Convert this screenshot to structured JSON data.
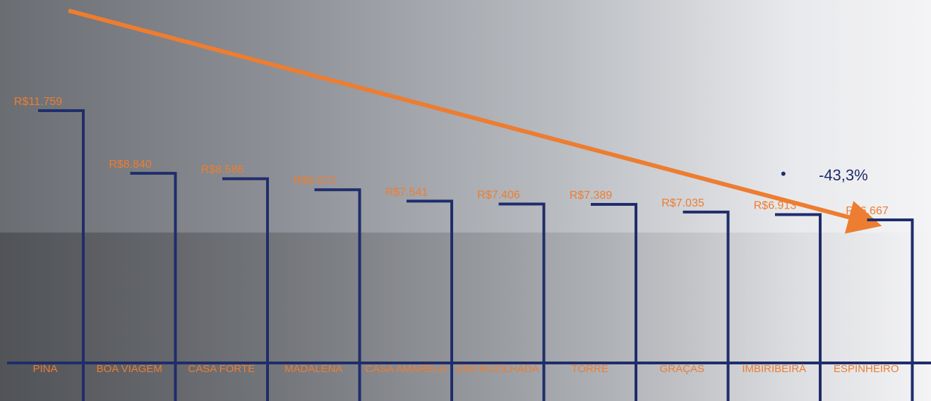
{
  "chart_data": {
    "type": "bar",
    "categories": [
      "PINA",
      "BOA VIAGEM",
      "CASA FORTE",
      "MADALENA",
      "CASA AMARELA",
      "ENCRUZILHADA",
      "TORRE",
      "GRAÇAS",
      "IMBIRIBEIRA",
      "ESPINHEIRO"
    ],
    "values": [
      11759,
      8840,
      8586,
      8072,
      7541,
      7406,
      7389,
      7035,
      6913,
      6667
    ],
    "value_labels": [
      "R$11.759",
      "R$8.840",
      "R$8.586",
      "R$8.072",
      "R$7.541",
      "R$7.406",
      "R$7.389",
      "R$7.035",
      "R$6.913",
      "R$6.667"
    ],
    "color": "#1f2d6b",
    "label_color": "#ed7d31",
    "arrow_color": "#ed7d31",
    "annotation": "-43,3%"
  }
}
